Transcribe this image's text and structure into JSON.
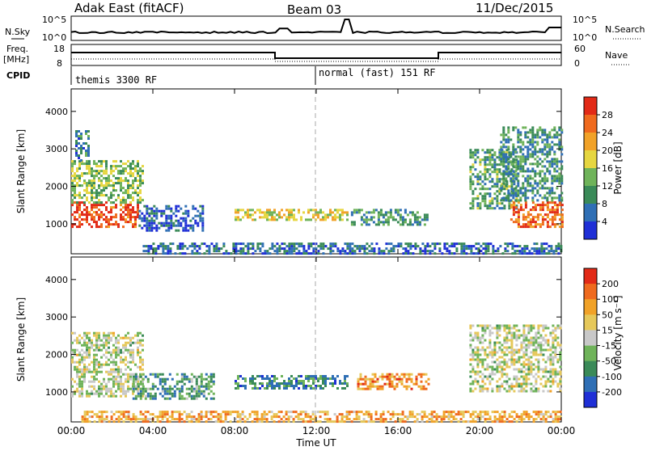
{
  "header": {
    "station": "Adak East (fitACF)",
    "beam": "Beam 03",
    "date": "11/Dec/2015"
  },
  "top_panels": {
    "nsky_label": "N.Sky",
    "nsearch_label": "N.Search",
    "noise_ticks_left": [
      "10^5",
      "10^0"
    ],
    "noise_ticks_right": [
      "10^5",
      "10^0"
    ],
    "freq_label_line1": "Freq.",
    "freq_label_line2": "[MHz]",
    "freq_ticks_left": [
      "18",
      "8"
    ],
    "nave_label": "Nave",
    "nave_ticks_right": [
      "60",
      "0"
    ],
    "cpid_label": "CPID",
    "cpid_segments": [
      "themis 3300 RF",
      "normal (fast) 151 RF"
    ]
  },
  "axes": {
    "x_ticks": [
      "00:00",
      "04:00",
      "08:00",
      "12:00",
      "16:00",
      "20:00",
      "00:00"
    ],
    "x_label": "Time UT",
    "y_ticks": [
      "1000",
      "2000",
      "3000",
      "4000"
    ],
    "y_label": "Slant Range [km]"
  },
  "colorbars": {
    "power": {
      "label": "Power [dB]",
      "ticks": [
        "4",
        "8",
        "12",
        "16",
        "20",
        "24",
        "28"
      ],
      "colors": [
        "#1f2fd6",
        "#2f6fb5",
        "#3a8a58",
        "#6fb35a",
        "#e6d640",
        "#f1a228",
        "#ef6a1e",
        "#e22a17"
      ]
    },
    "velocity": {
      "label": "Velocity [m s⁻¹]",
      "ticks": [
        "200",
        "100",
        "50",
        "15",
        "-15",
        "-50",
        "-100",
        "-200"
      ],
      "colors": [
        "#1f2fd6",
        "#2f6fb5",
        "#3a8a58",
        "#6fb35a",
        "#c8c8c8",
        "#e6c85a",
        "#f1a228",
        "#ef6a1e",
        "#e22a17"
      ]
    }
  },
  "chart_data": [
    {
      "type": "heatmap",
      "title": "Power",
      "xlabel": "Time UT",
      "ylabel": "Slant Range [km]",
      "xlim": [
        0,
        24
      ],
      "ylim": [
        200,
        4600
      ],
      "color_scale": "Power [dB]",
      "regions": [
        {
          "t0": 0.0,
          "t1": 3.3,
          "r0": 900,
          "r1": 1600,
          "level": 0.9
        },
        {
          "t0": 0.0,
          "t1": 3.5,
          "r0": 1600,
          "r1": 2700,
          "level": 0.45
        },
        {
          "t0": 0.2,
          "t1": 0.8,
          "r0": 2700,
          "r1": 3500,
          "level": 0.25
        },
        {
          "t0": 3.3,
          "t1": 6.5,
          "r0": 800,
          "r1": 1500,
          "level": 0.15
        },
        {
          "t0": 8.0,
          "t1": 13.5,
          "r0": 1100,
          "r1": 1400,
          "level": 0.55
        },
        {
          "t0": 13.7,
          "t1": 17.5,
          "r0": 1000,
          "r1": 1400,
          "level": 0.3
        },
        {
          "t0": 19.5,
          "t1": 21.8,
          "r0": 1400,
          "r1": 3000,
          "level": 0.35
        },
        {
          "t0": 21.5,
          "t1": 24.0,
          "r0": 900,
          "r1": 1600,
          "level": 0.8
        },
        {
          "t0": 21.0,
          "t1": 24.0,
          "r0": 1600,
          "r1": 3600,
          "level": 0.3
        },
        {
          "t0": 3.5,
          "t1": 24.0,
          "r0": 200,
          "r1": 500,
          "level": 0.2
        }
      ]
    },
    {
      "type": "heatmap",
      "title": "Velocity",
      "xlabel": "Time UT",
      "ylabel": "Slant Range [km]",
      "xlim": [
        0,
        24
      ],
      "ylim": [
        200,
        4600
      ],
      "color_scale": "Velocity [m s⁻¹]",
      "regions": [
        {
          "t0": 0.0,
          "t1": 3.5,
          "r0": 900,
          "r1": 2600,
          "level": 0.5
        },
        {
          "t0": 3.0,
          "t1": 7.0,
          "r0": 800,
          "r1": 1500,
          "level": 0.3
        },
        {
          "t0": 8.0,
          "t1": 13.5,
          "r0": 1100,
          "r1": 1450,
          "level": 0.25
        },
        {
          "t0": 14.0,
          "t1": 17.5,
          "r0": 1100,
          "r1": 1500,
          "level": 0.75
        },
        {
          "t0": 19.5,
          "t1": 24.0,
          "r0": 1000,
          "r1": 2800,
          "level": 0.5
        },
        {
          "t0": 0.5,
          "t1": 24.0,
          "r0": 200,
          "r1": 500,
          "level": 0.7
        }
      ]
    }
  ]
}
